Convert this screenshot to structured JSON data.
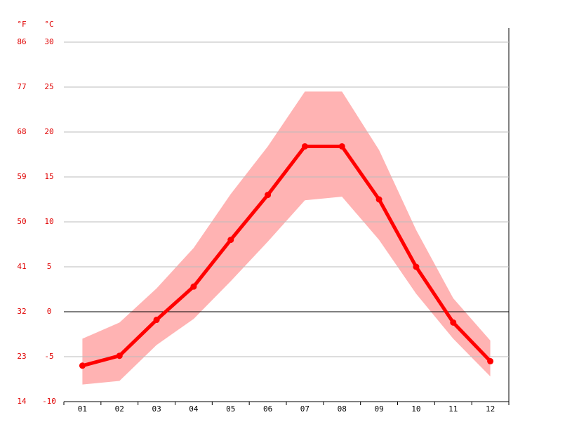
{
  "chart_data": {
    "type": "line",
    "y_label": "°C",
    "y2_label": "°F",
    "categories": [
      "01",
      "02",
      "03",
      "04",
      "05",
      "06",
      "07",
      "08",
      "09",
      "10",
      "11",
      "12"
    ],
    "series": [
      {
        "color": "#ff0000",
        "values": [
          -6.0,
          -4.9,
          -0.9,
          2.8,
          8.0,
          13.0,
          18.4,
          18.4,
          12.5,
          5.0,
          -1.2,
          -5.5
        ]
      }
    ],
    "band": {
      "color": "#ffb3b3",
      "low": [
        -8.1,
        -7.7,
        -3.7,
        -0.8,
        3.4,
        7.8,
        12.4,
        12.8,
        8.0,
        2.0,
        -3.0,
        -7.2
      ],
      "high": [
        -3.0,
        -1.2,
        2.6,
        7.1,
        13.1,
        18.4,
        24.5,
        24.5,
        18.0,
        9.1,
        1.5,
        -3.2
      ]
    },
    "ylim": [
      -10,
      30
    ],
    "yticks": [
      -10,
      -5,
      0,
      5,
      10,
      15,
      20,
      25,
      30
    ],
    "y2lim": [
      14,
      86
    ],
    "y2ticks": [
      14,
      23,
      32,
      41,
      50,
      59,
      68,
      77,
      86
    ],
    "grid": true
  }
}
